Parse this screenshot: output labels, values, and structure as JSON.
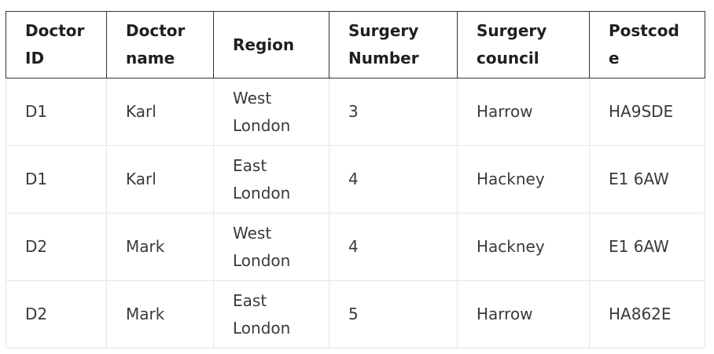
{
  "table": {
    "headers": [
      "Doctor ID",
      "Doctor name",
      "Region",
      "Surgery Number",
      "Surgery council",
      "Postcode"
    ],
    "rows": [
      [
        "D1",
        "Karl",
        "West London",
        "3",
        "Harrow",
        "HA9SDE"
      ],
      [
        "D1",
        "Karl",
        "East London",
        "4",
        "Hackney",
        "E1 6AW"
      ],
      [
        "D2",
        "Mark",
        "West London",
        "4",
        "Hackney",
        "E1 6AW"
      ],
      [
        "D2",
        "Mark",
        "East London",
        "5",
        "Harrow",
        "HA862E"
      ]
    ]
  }
}
